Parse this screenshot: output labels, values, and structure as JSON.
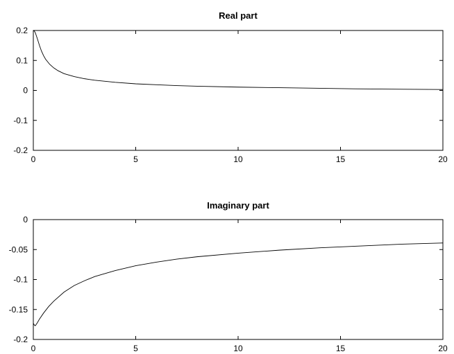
{
  "chart_data": [
    {
      "type": "line",
      "title": "Real part",
      "xlabel": "",
      "ylabel": "",
      "xlim": [
        0,
        20
      ],
      "ylim": [
        -0.2,
        0.2
      ],
      "xticks": [
        0,
        5,
        10,
        15,
        20
      ],
      "yticks": [
        0.2,
        0.1,
        0,
        -0.1,
        -0.2
      ],
      "xtick_labels": [
        "0",
        "5",
        "10",
        "15",
        "20"
      ],
      "ytick_labels": [
        "0.2",
        "0.1",
        "0",
        "-0.1",
        "-0.2"
      ],
      "grid": false,
      "series": [
        {
          "x": [
            0.0,
            0.05,
            0.1,
            0.2,
            0.3,
            0.4,
            0.5,
            0.6,
            0.8,
            1.0,
            1.2,
            1.5,
            2.0,
            2.5,
            3.0,
            4.0,
            5.0,
            6.0,
            7.0,
            8.0,
            10.0,
            12.0,
            14.0,
            16.0,
            18.0,
            20.0
          ],
          "y": [
            0.2,
            0.198,
            0.192,
            0.172,
            0.15,
            0.131,
            0.116,
            0.104,
            0.087,
            0.075,
            0.066,
            0.056,
            0.046,
            0.039,
            0.034,
            0.027,
            0.022,
            0.019,
            0.016,
            0.014,
            0.011,
            0.009,
            0.007,
            0.005,
            0.004,
            0.003
          ]
        }
      ]
    },
    {
      "type": "line",
      "title": "Imaginary part",
      "xlabel": "",
      "ylabel": "",
      "xlim": [
        0,
        20
      ],
      "ylim": [
        -0.2,
        0
      ],
      "xticks": [
        0,
        5,
        10,
        15,
        20
      ],
      "yticks": [
        0,
        -0.05,
        -0.1,
        -0.15,
        -0.2
      ],
      "xtick_labels": [
        "0",
        "5",
        "10",
        "15",
        "20"
      ],
      "ytick_labels": [
        "0",
        "-0.05",
        "-0.1",
        "-0.15",
        "-0.2"
      ],
      "grid": false,
      "series": [
        {
          "x": [
            0.0,
            0.05,
            0.1,
            0.2,
            0.3,
            0.5,
            0.75,
            1.0,
            1.5,
            2.0,
            2.5,
            3.0,
            4.0,
            5.0,
            6.0,
            7.0,
            8.0,
            10.0,
            12.0,
            14.0,
            16.0,
            18.0,
            20.0
          ],
          "y": [
            -0.173,
            -0.176,
            -0.177,
            -0.172,
            -0.166,
            -0.156,
            -0.145,
            -0.136,
            -0.121,
            -0.11,
            -0.102,
            -0.095,
            -0.085,
            -0.077,
            -0.071,
            -0.066,
            -0.062,
            -0.056,
            -0.051,
            -0.047,
            -0.044,
            -0.041,
            -0.039
          ]
        }
      ]
    }
  ]
}
